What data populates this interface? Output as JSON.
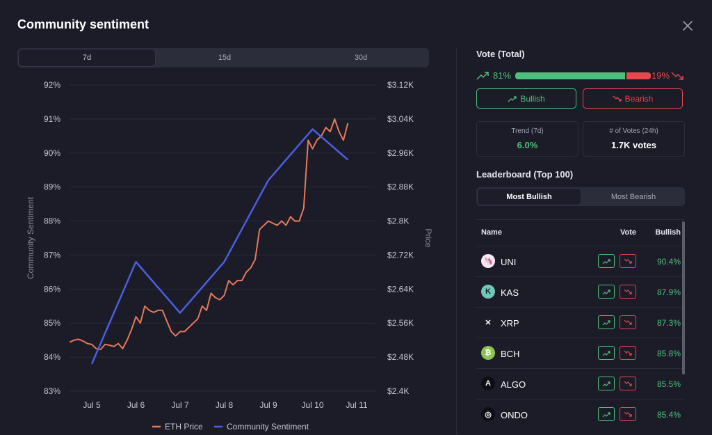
{
  "header": {
    "title": "Community sentiment"
  },
  "range_tabs": [
    {
      "label": "7d"
    },
    {
      "label": "15d"
    },
    {
      "label": "30d"
    }
  ],
  "chart_data": {
    "type": "line",
    "x_labels": [
      "Jul 5",
      "Jul 6",
      "Jul 7",
      "Jul 8",
      "Jul 9",
      "Jul 10",
      "Jul 11"
    ],
    "left_axis": {
      "label": "Community Sentiment",
      "ticks": [
        "92%",
        "91%",
        "90%",
        "89%",
        "88%",
        "87%",
        "86%",
        "85%",
        "84%",
        "83%"
      ],
      "range": [
        83,
        92
      ]
    },
    "right_axis": {
      "label": "Price",
      "ticks": [
        "$3.12K",
        "$3.04K",
        "$2.96K",
        "$2.88K",
        "$2.8K",
        "$2.72K",
        "$2.64K",
        "$2.56K",
        "$2.48K",
        "$2.4K"
      ],
      "range": [
        2400,
        3120
      ]
    },
    "series": [
      {
        "name": "Community Sentiment",
        "color": "#4c5fe0",
        "x": [
          0,
          1,
          2,
          3,
          4,
          5,
          5.8
        ],
        "y": [
          83.8,
          86.8,
          85.3,
          86.8,
          89.2,
          90.7,
          89.8
        ]
      },
      {
        "name": "ETH Price",
        "color": "#e8795b",
        "x": [
          -0.5,
          -0.4,
          -0.3,
          -0.2,
          -0.1,
          0,
          0.1,
          0.2,
          0.3,
          0.4,
          0.5,
          0.6,
          0.7,
          0.8,
          0.9,
          1.0,
          1.1,
          1.2,
          1.3,
          1.4,
          1.5,
          1.6,
          1.7,
          1.8,
          1.9,
          2.0,
          2.1,
          2.2,
          2.3,
          2.4,
          2.5,
          2.6,
          2.7,
          2.8,
          2.9,
          3.0,
          3.1,
          3.2,
          3.3,
          3.4,
          3.5,
          3.6,
          3.7,
          3.8,
          3.9,
          4.0,
          4.1,
          4.2,
          4.3,
          4.4,
          4.5,
          4.6,
          4.7,
          4.8,
          4.9,
          5.0,
          5.1,
          5.2,
          5.3,
          5.4,
          5.5,
          5.6,
          5.7,
          5.8
        ],
        "y": [
          2515,
          2520,
          2522,
          2518,
          2512,
          2510,
          2500,
          2498,
          2510,
          2508,
          2505,
          2512,
          2500,
          2520,
          2545,
          2575,
          2560,
          2600,
          2590,
          2585,
          2590,
          2590,
          2565,
          2540,
          2530,
          2540,
          2540,
          2550,
          2560,
          2570,
          2600,
          2590,
          2630,
          2620,
          2615,
          2625,
          2660,
          2650,
          2660,
          2660,
          2680,
          2690,
          2710,
          2780,
          2790,
          2800,
          2795,
          2790,
          2800,
          2790,
          2810,
          2800,
          2800,
          2830,
          2990,
          2970,
          2990,
          3000,
          3020,
          3010,
          3040,
          3010,
          2990,
          3030
        ]
      }
    ],
    "legend": [
      "ETH Price",
      "Community Sentiment"
    ],
    "legend_position": "bottom"
  },
  "vote": {
    "title": "Vote (Total)",
    "bullish_pct": "81%",
    "bearish_pct": "19%",
    "bullish_fraction": 0.81,
    "bullish_button": "Bullish",
    "bearish_button": "Bearish"
  },
  "stats": [
    {
      "label": "Trend (7d)",
      "value": "6.0%",
      "color": "#4fc07a"
    },
    {
      "label": "# of Votes (24h)",
      "value": "1.7K votes",
      "color": "#ffffff"
    }
  ],
  "leaderboard": {
    "title": "Leaderboard (Top 100)",
    "tabs": [
      "Most Bullish",
      "Most Bearish"
    ],
    "columns": {
      "name": "Name",
      "vote": "Vote",
      "bullish": "Bullish"
    },
    "rows": [
      {
        "symbol": "UNI",
        "pct": "90.4%",
        "icon": "uni-icon",
        "icon_bg": "#fbe7f0",
        "icon_fg": "#e6348b",
        "glyph": "🦄"
      },
      {
        "symbol": "KAS",
        "pct": "87.9%",
        "icon": "kas-icon",
        "icon_bg": "#70c7ba",
        "icon_fg": "#0b2b28",
        "glyph": "K"
      },
      {
        "symbol": "XRP",
        "pct": "87.3%",
        "icon": "xrp-icon",
        "icon_bg": "#1b1c28",
        "icon_fg": "#ffffff",
        "glyph": "✕"
      },
      {
        "symbol": "BCH",
        "pct": "85.8%",
        "icon": "bch-icon",
        "icon_bg": "#8dc351",
        "icon_fg": "#ffffff",
        "glyph": "₿"
      },
      {
        "symbol": "ALGO",
        "pct": "85.5%",
        "icon": "algo-icon",
        "icon_bg": "#0d0e15",
        "icon_fg": "#ffffff",
        "glyph": "A"
      },
      {
        "symbol": "ONDO",
        "pct": "85.4%",
        "icon": "ondo-icon",
        "icon_bg": "#0d0e15",
        "icon_fg": "#ffffff",
        "glyph": "◎"
      }
    ]
  }
}
